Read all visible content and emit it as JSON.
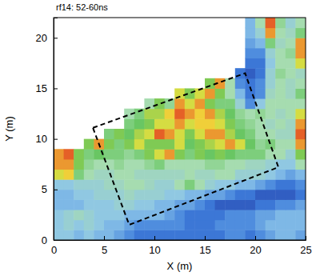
{
  "chart_data": {
    "type": "heatmap",
    "title": "rf14: 52-60ns",
    "x_label": "X (m)",
    "y_label": "Y (m)",
    "xlim": [
      0,
      25
    ],
    "ylim": [
      0,
      22
    ],
    "xticks": [
      0,
      5,
      10,
      15,
      20,
      25
    ],
    "yticks": [
      0,
      5,
      10,
      15,
      20
    ],
    "zlim": [
      0,
      10
    ],
    "x": [
      0.5,
      1.5,
      2.5,
      3.5,
      4.5,
      5.5,
      6.5,
      7.5,
      8.5,
      9.5,
      10.5,
      11.5,
      12.5,
      13.5,
      14.5,
      15.5,
      16.5,
      17.5,
      18.5,
      19.5,
      20.5,
      21.5,
      22.5,
      23.5,
      24.5
    ],
    "y": [
      0.5,
      1.5,
      2.5,
      3.5,
      4.5,
      5.5,
      6.5,
      7.5,
      8.5,
      9.5,
      10.5,
      11.5,
      12.5,
      13.5,
      14.5,
      15.5,
      16.5,
      17.5,
      18.5,
      19.5,
      20.5,
      21.5
    ],
    "z": [
      [
        3.5,
        3.5,
        3,
        3.5,
        3,
        3,
        2.5,
        2,
        1.5,
        1.5,
        1.5,
        1.5,
        1.5,
        1.5,
        1.5,
        1.5,
        1.5,
        2,
        2,
        1.5,
        2,
        2.5,
        3,
        3,
        2.5
      ],
      [
        3.5,
        4,
        3.5,
        4,
        3.5,
        3,
        3,
        2.5,
        2,
        2,
        2,
        2,
        2,
        1.5,
        1.5,
        1.5,
        2,
        2,
        2,
        2,
        2.5,
        3,
        3,
        3,
        3
      ],
      [
        3.5,
        4,
        4.5,
        4,
        3.5,
        3.5,
        3.5,
        3,
        3,
        3,
        3,
        2.5,
        2,
        1.5,
        1.5,
        1.5,
        1.5,
        2,
        2,
        2,
        2.5,
        2.5,
        3,
        3,
        3
      ],
      [
        3,
        3,
        3,
        3.5,
        3.5,
        3.5,
        4,
        4,
        3.5,
        3.5,
        3,
        3,
        2.5,
        2.5,
        2,
        1.5,
        1,
        1,
        1,
        1,
        1.5,
        1.5,
        2,
        2,
        2.5
      ],
      [
        3,
        3,
        3.5,
        3.5,
        4,
        4,
        4,
        4.5,
        4,
        4,
        4,
        3.5,
        3.5,
        3,
        3,
        2.5,
        2.5,
        2,
        1.5,
        1.5,
        1,
        1,
        1,
        1,
        1.5
      ],
      [
        3.5,
        3.5,
        4,
        4,
        4,
        4.5,
        4.5,
        5,
        5,
        4.5,
        4,
        4,
        5,
        6,
        5,
        4,
        3.5,
        3.5,
        3,
        3,
        2.5,
        2,
        1.5,
        1.5,
        2
      ],
      [
        8,
        8.5,
        6,
        5,
        4.5,
        4.5,
        5,
        5,
        4.5,
        4.5,
        4.5,
        4.5,
        4.5,
        5,
        4.5,
        4.5,
        5,
        5,
        4,
        4,
        4,
        3.5,
        3,
        2.5,
        3
      ],
      [
        9,
        9,
        7,
        5.5,
        5,
        5,
        5.5,
        5,
        5,
        5.5,
        6,
        5,
        5,
        5,
        5,
        5.5,
        5.5,
        5,
        5,
        4.5,
        4.5,
        4,
        3.5,
        3.5,
        5
      ],
      [
        9,
        9.5,
        7,
        6,
        6.5,
        6,
        6,
        5.5,
        6,
        7,
        8,
        9,
        7,
        6,
        7,
        6.5,
        7,
        6.5,
        6,
        6,
        6,
        5,
        5,
        4,
        7
      ],
      [
        null,
        null,
        null,
        7,
        9,
        7,
        6,
        7,
        8,
        7,
        7,
        7,
        8,
        6.5,
        7,
        7.5,
        8,
        9,
        8,
        6.5,
        5.5,
        6,
        5,
        5,
        9
      ],
      [
        null,
        null,
        null,
        null,
        null,
        6,
        7,
        6.5,
        7.5,
        8,
        9.5,
        9,
        8,
        7,
        8,
        9,
        9,
        7.5,
        6.5,
        6,
        5,
        5,
        4.5,
        4.5,
        9.5
      ],
      [
        null,
        null,
        null,
        null,
        null,
        null,
        null,
        6,
        6.5,
        7,
        8,
        8,
        9,
        8,
        8.5,
        8.5,
        8,
        7,
        6,
        5.5,
        5,
        4.5,
        5,
        4.5,
        9
      ],
      [
        null,
        null,
        null,
        null,
        null,
        null,
        null,
        5,
        6,
        7.5,
        7.5,
        8.5,
        9.5,
        9,
        8.5,
        9,
        7.5,
        6.5,
        5.5,
        5,
        5.5,
        5,
        4.5,
        5,
        8
      ],
      [
        null,
        null,
        null,
        null,
        null,
        null,
        null,
        null,
        null,
        5,
        7,
        5.5,
        9,
        8,
        9,
        7,
        6,
        6,
        4,
        2,
        3.5,
        5,
        5,
        5,
        5
      ],
      [
        null,
        null,
        null,
        null,
        null,
        null,
        null,
        null,
        null,
        null,
        null,
        null,
        8,
        7,
        8,
        9,
        7,
        5,
        3,
        1.5,
        2,
        4.5,
        5,
        4.5,
        6
      ],
      [
        null,
        null,
        null,
        null,
        null,
        null,
        null,
        null,
        null,
        null,
        null,
        null,
        null,
        null,
        null,
        7,
        9,
        5,
        2,
        1.5,
        2,
        4,
        5,
        4.5,
        5
      ],
      [
        null,
        null,
        null,
        null,
        null,
        null,
        null,
        null,
        null,
        null,
        null,
        null,
        null,
        null,
        null,
        null,
        null,
        null,
        1.5,
        1,
        1.5,
        4,
        5.5,
        5,
        4.5
      ],
      [
        null,
        null,
        null,
        null,
        null,
        null,
        null,
        null,
        null,
        null,
        null,
        null,
        null,
        null,
        null,
        null,
        null,
        null,
        null,
        1.5,
        1.5,
        3.5,
        5,
        5,
        8
      ],
      [
        null,
        null,
        null,
        null,
        null,
        null,
        null,
        null,
        null,
        null,
        null,
        null,
        null,
        null,
        null,
        null,
        null,
        null,
        null,
        2,
        2,
        4,
        5,
        5.5,
        9
      ],
      [
        null,
        null,
        null,
        null,
        null,
        null,
        null,
        null,
        null,
        null,
        null,
        null,
        null,
        null,
        null,
        null,
        null,
        null,
        null,
        2.5,
        3,
        6,
        4.5,
        5,
        9
      ],
      [
        null,
        null,
        null,
        null,
        null,
        null,
        null,
        null,
        null,
        null,
        null,
        null,
        null,
        null,
        null,
        null,
        null,
        null,
        null,
        3,
        4,
        9,
        5,
        4.5,
        6
      ],
      [
        null,
        null,
        null,
        null,
        null,
        null,
        null,
        null,
        null,
        null,
        null,
        null,
        null,
        null,
        null,
        null,
        null,
        null,
        null,
        3,
        5,
        9.5,
        5.5,
        4,
        5
      ]
    ],
    "overlay": {
      "type": "line",
      "line_style": "dashed",
      "color": "#000000",
      "x": [
        3.9,
        19,
        22.3,
        7.5
      ],
      "y": [
        11.1,
        16.5,
        7.2,
        1.5
      ]
    }
  }
}
